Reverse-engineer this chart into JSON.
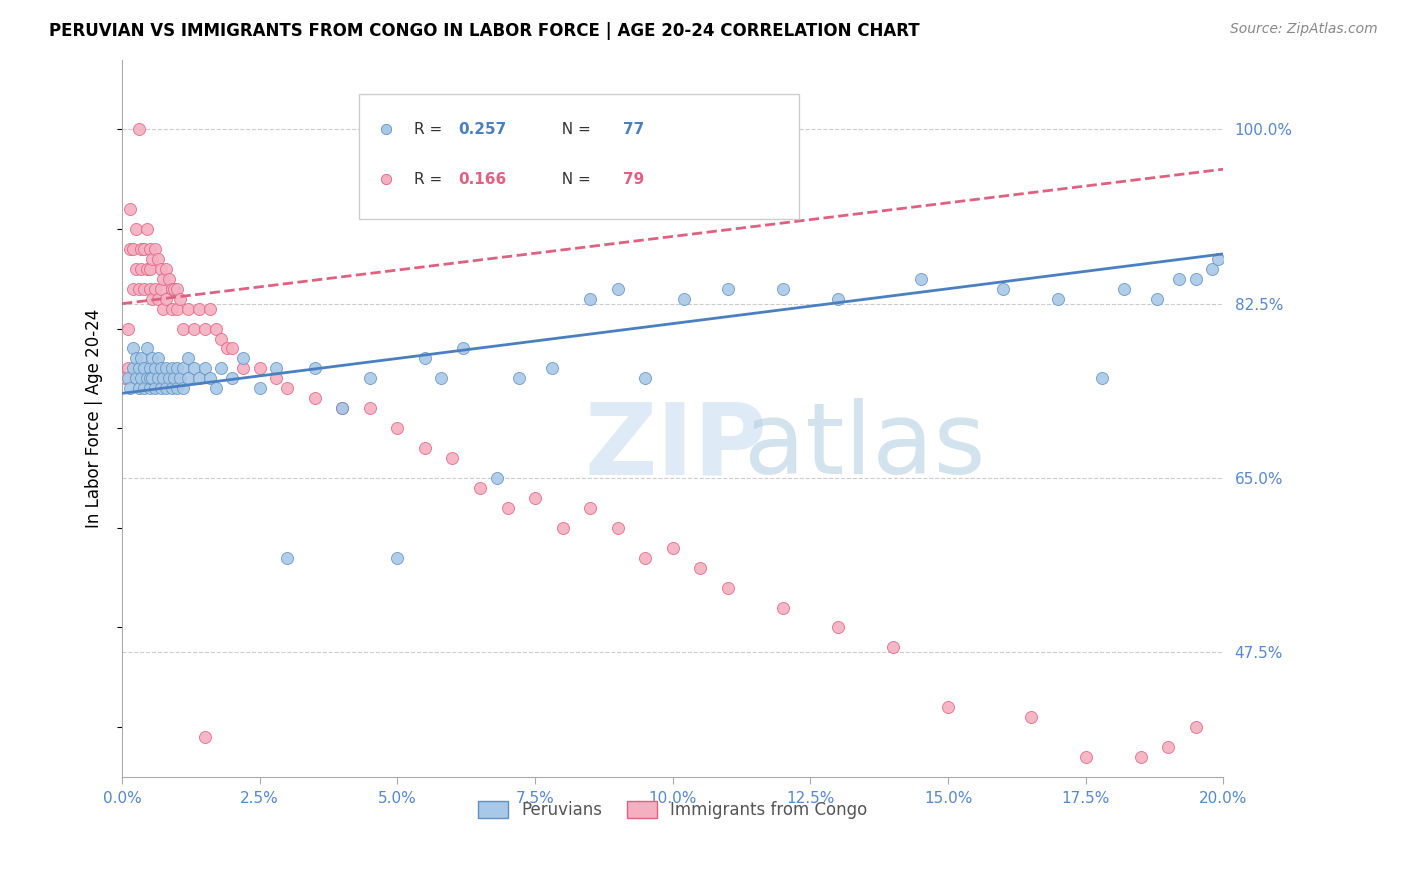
{
  "title": "PERUVIAN VS IMMIGRANTS FROM CONGO IN LABOR FORCE | AGE 20-24 CORRELATION CHART",
  "source": "Source: ZipAtlas.com",
  "xlabel_ticks": [
    "0.0%",
    "2.5%",
    "5.0%",
    "7.5%",
    "10.0%",
    "12.5%",
    "15.0%",
    "17.5%",
    "20.0%"
  ],
  "xlabel_vals": [
    0.0,
    2.5,
    5.0,
    7.5,
    10.0,
    12.5,
    15.0,
    17.5,
    20.0
  ],
  "ylabel_ticks": [
    "47.5%",
    "65.0%",
    "82.5%",
    "100.0%"
  ],
  "ylabel_vals": [
    47.5,
    65.0,
    82.5,
    100.0
  ],
  "ylabel_label": "In Labor Force | Age 20-24",
  "xlim": [
    0.0,
    20.0
  ],
  "ylim": [
    35.0,
    107.0
  ],
  "blue_label": "Peruvians",
  "pink_label": "Immigrants from Congo",
  "blue_R": 0.257,
  "blue_N": 77,
  "pink_R": 0.166,
  "pink_N": 79,
  "blue_color": "#a8c8e8",
  "pink_color": "#f4b0c0",
  "blue_edge_color": "#6090c0",
  "pink_edge_color": "#e06080",
  "blue_line_color": "#4a7fc0",
  "pink_line_color": "#e06080",
  "watermark_zip_color": "#c8dff0",
  "watermark_atlas_color": "#b0cce0",
  "blue_scatter_x": [
    0.1,
    0.15,
    0.2,
    0.2,
    0.25,
    0.25,
    0.3,
    0.3,
    0.35,
    0.35,
    0.4,
    0.4,
    0.45,
    0.45,
    0.5,
    0.5,
    0.5,
    0.55,
    0.55,
    0.6,
    0.6,
    0.65,
    0.65,
    0.7,
    0.7,
    0.75,
    0.8,
    0.8,
    0.85,
    0.9,
    0.9,
    0.95,
    1.0,
    1.0,
    1.05,
    1.1,
    1.1,
    1.2,
    1.2,
    1.3,
    1.4,
    1.5,
    1.6,
    1.7,
    1.8,
    2.0,
    2.2,
    2.5,
    2.8,
    3.0,
    3.5,
    4.0,
    4.5,
    5.0,
    5.5,
    5.8,
    6.2,
    6.8,
    7.2,
    7.8,
    8.5,
    9.0,
    9.5,
    10.2,
    11.0,
    12.0,
    13.0,
    14.5,
    16.0,
    17.0,
    17.8,
    18.2,
    18.8,
    19.2,
    19.5,
    19.8,
    19.9
  ],
  "blue_scatter_y": [
    75.0,
    74.0,
    76.0,
    78.0,
    75.0,
    77.0,
    74.0,
    76.0,
    75.0,
    77.0,
    74.0,
    76.0,
    75.0,
    78.0,
    74.0,
    76.0,
    75.0,
    75.0,
    77.0,
    74.0,
    76.0,
    75.0,
    77.0,
    74.0,
    76.0,
    75.0,
    74.0,
    76.0,
    75.0,
    74.0,
    76.0,
    75.0,
    74.0,
    76.0,
    75.0,
    74.0,
    76.0,
    75.0,
    77.0,
    76.0,
    75.0,
    76.0,
    75.0,
    74.0,
    76.0,
    75.0,
    77.0,
    74.0,
    76.0,
    57.0,
    76.0,
    72.0,
    75.0,
    57.0,
    77.0,
    75.0,
    78.0,
    65.0,
    75.0,
    76.0,
    83.0,
    84.0,
    75.0,
    83.0,
    84.0,
    84.0,
    83.0,
    85.0,
    84.0,
    83.0,
    75.0,
    84.0,
    83.0,
    85.0,
    85.0,
    86.0,
    87.0
  ],
  "pink_scatter_x": [
    0.05,
    0.1,
    0.1,
    0.15,
    0.15,
    0.2,
    0.2,
    0.25,
    0.25,
    0.3,
    0.3,
    0.35,
    0.35,
    0.4,
    0.4,
    0.45,
    0.45,
    0.5,
    0.5,
    0.5,
    0.55,
    0.55,
    0.6,
    0.6,
    0.65,
    0.65,
    0.7,
    0.7,
    0.75,
    0.75,
    0.8,
    0.8,
    0.85,
    0.9,
    0.9,
    0.95,
    1.0,
    1.0,
    1.05,
    1.1,
    1.2,
    1.3,
    1.4,
    1.5,
    1.6,
    1.7,
    1.8,
    1.9,
    2.0,
    2.2,
    2.5,
    2.8,
    3.0,
    3.5,
    4.0,
    4.5,
    5.0,
    5.5,
    6.0,
    6.5,
    7.0,
    7.5,
    8.0,
    8.5,
    9.0,
    9.5,
    10.0,
    10.5,
    11.0,
    12.0,
    13.0,
    14.0,
    15.0,
    16.5,
    17.5,
    18.5,
    19.0,
    19.5,
    1.5
  ],
  "pink_scatter_y": [
    75.0,
    76.0,
    80.0,
    88.0,
    92.0,
    84.0,
    88.0,
    86.0,
    90.0,
    100.0,
    84.0,
    86.0,
    88.0,
    84.0,
    88.0,
    86.0,
    90.0,
    88.0,
    84.0,
    86.0,
    87.0,
    83.0,
    88.0,
    84.0,
    87.0,
    83.0,
    86.0,
    84.0,
    85.0,
    82.0,
    86.0,
    83.0,
    85.0,
    84.0,
    82.0,
    84.0,
    84.0,
    82.0,
    83.0,
    80.0,
    82.0,
    80.0,
    82.0,
    80.0,
    82.0,
    80.0,
    79.0,
    78.0,
    78.0,
    76.0,
    76.0,
    75.0,
    74.0,
    73.0,
    72.0,
    72.0,
    70.0,
    68.0,
    67.0,
    64.0,
    62.0,
    63.0,
    60.0,
    62.0,
    60.0,
    57.0,
    58.0,
    56.0,
    54.0,
    52.0,
    50.0,
    48.0,
    42.0,
    41.0,
    37.0,
    37.0,
    38.0,
    40.0,
    39.0
  ],
  "blue_trend_x": [
    0.0,
    20.0
  ],
  "blue_trend_y": [
    73.5,
    87.5
  ],
  "pink_trend_x": [
    0.0,
    20.0
  ],
  "pink_trend_y": [
    82.5,
    96.0
  ]
}
